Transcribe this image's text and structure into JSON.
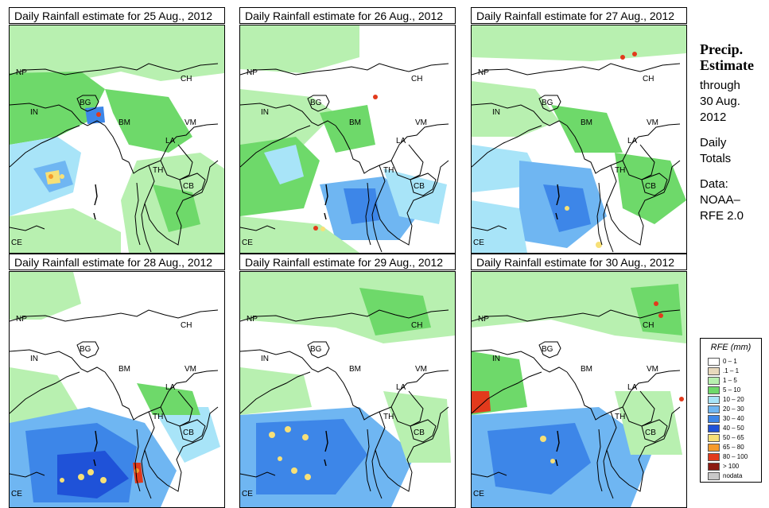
{
  "panels": [
    {
      "title": "Daily Rainfall estimate for  25 Aug., 2012"
    },
    {
      "title": "Daily Rainfall estimate for  26 Aug., 2012"
    },
    {
      "title": "Daily Rainfall estimate for  27 Aug., 2012"
    },
    {
      "title": "Daily Rainfall estimate for  28 Aug., 2012"
    },
    {
      "title": "Daily Rainfall estimate for  29 Aug., 2012"
    },
    {
      "title": "Daily Rainfall estimate for  30 Aug., 2012"
    }
  ],
  "country_labels": {
    "np": "NP",
    "in": "IN",
    "bg": "BG",
    "ch": "CH",
    "bm": "BM",
    "vm": "VM",
    "la": "LA",
    "th": "TH",
    "cb": "CB",
    "ce": "CE"
  },
  "side": {
    "line1": "Precip.",
    "line2": "Estimate",
    "line3": "through",
    "line4": "30 Aug.",
    "line5": "2012",
    "line6": "Daily",
    "line7": "Totals",
    "line8": "Data:",
    "line9": "NOAA–",
    "line10": "RFE 2.0"
  },
  "legend": {
    "title": "RFE (mm)",
    "items": [
      {
        "range": "0 – 1",
        "color": "#ffffff"
      },
      {
        "range": ".1 – 1",
        "color": "#e8d9bd"
      },
      {
        "range": "1 – 5",
        "color": "#b8f0b0"
      },
      {
        "range": "5 – 10",
        "color": "#6ed96a"
      },
      {
        "range": "10 – 20",
        "color": "#a8e4f8"
      },
      {
        "range": "20 – 30",
        "color": "#6fb6f2"
      },
      {
        "range": "30 – 40",
        "color": "#3d86e8"
      },
      {
        "range": "40 – 50",
        "color": "#1f52d8"
      },
      {
        "range": "50 – 65",
        "color": "#f7e077"
      },
      {
        "range": "65 – 80",
        "color": "#f59a2a"
      },
      {
        "range": "80 – 100",
        "color": "#e23a1c"
      },
      {
        "range": "> 100",
        "color": "#8c1a12"
      },
      {
        "range": "nodata",
        "color": "#c8c8c8"
      }
    ]
  }
}
